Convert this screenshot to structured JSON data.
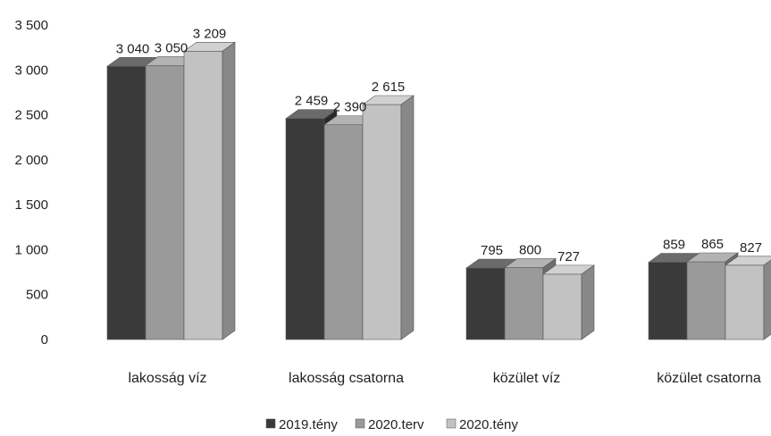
{
  "chart_data": {
    "type": "bar",
    "title": "",
    "xlabel": "",
    "ylabel": "",
    "categories": [
      "lakosság víz",
      "lakosság csatorna",
      "közület víz",
      "közület csatorna"
    ],
    "series": [
      {
        "name": "2019.tény",
        "values": [
          3040,
          2459,
          795,
          859
        ],
        "labels": [
          "3 040",
          "2 459",
          "795",
          "859"
        ],
        "color": "#3a3a3a"
      },
      {
        "name": "2020.terv",
        "values": [
          3050,
          2390,
          800,
          865
        ],
        "labels": [
          "3 050",
          "2 390",
          "800",
          "865"
        ],
        "color": "#9a9a9a"
      },
      {
        "name": "2020.tény",
        "values": [
          3209,
          2615,
          727,
          827
        ],
        "labels": [
          "3 209",
          "2 615",
          "727",
          "827"
        ],
        "color": "#c2c2c2"
      }
    ],
    "ylim": [
      0,
      3500
    ],
    "yticks": [
      0,
      500,
      1000,
      1500,
      2000,
      2500,
      3000,
      3500
    ],
    "ytick_labels": [
      "0",
      "500",
      "1 000",
      "1 500",
      "2 000",
      "2 500",
      "3 000",
      "3 500"
    ],
    "grid": false,
    "legend_position": "bottom",
    "style": "3d-bar"
  }
}
